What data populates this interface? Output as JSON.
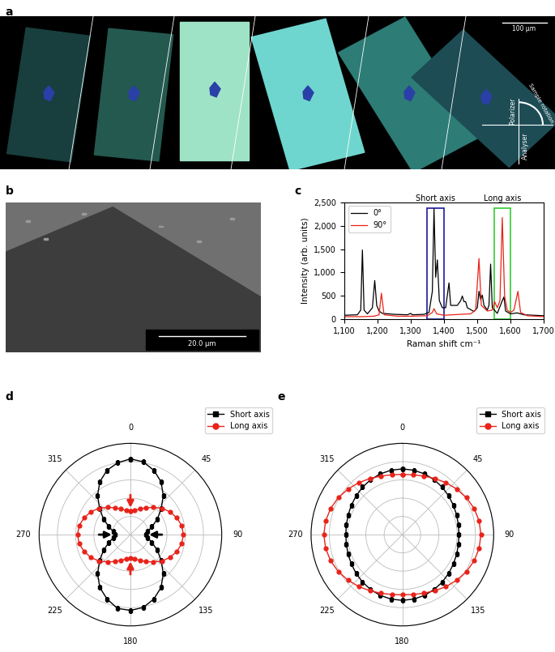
{
  "panels": [
    {
      "panel_label": "a",
      "type": "image",
      "scale_bar": "100 μm",
      "labels": [
        "Polarizer",
        "Sample rotation",
        "Analyser"
      ]
    },
    {
      "panel_label": "b",
      "type": "image",
      "scale_bar": "20.0 μm"
    }
  ],
  "chart_data": [
    {
      "panel_label": "c",
      "type": "line",
      "x_label": "Raman shift cm⁻¹",
      "y_label": "Intensity (arb. units)",
      "xlim": [
        1100,
        1700
      ],
      "xticks": [
        {
          "value": 1100,
          "label": "1,100"
        },
        {
          "value": 1200,
          "label": "1,200"
        },
        {
          "value": 1300,
          "label": "1,300"
        },
        {
          "value": 1400,
          "label": "1,400"
        },
        {
          "value": 1500,
          "label": "1,500"
        },
        {
          "value": 1600,
          "label": "1,600"
        },
        {
          "value": 1700,
          "label": "1,700"
        }
      ],
      "ylim": [
        0,
        2500
      ],
      "yticks": [
        0,
        500,
        {
          "value": 1000,
          "label": "1,000"
        },
        {
          "value": 1500,
          "label": "1,500"
        },
        {
          "value": 2000,
          "label": "2,000"
        },
        {
          "value": 2500,
          "label": "2,500"
        }
      ],
      "legend": "upper left",
      "series": [
        {
          "name": "0°",
          "color": "#000000",
          "x": [
            1100,
            1140,
            1150,
            1155,
            1160,
            1170,
            1185,
            1192,
            1198,
            1205,
            1215,
            1250,
            1290,
            1300,
            1305,
            1340,
            1355,
            1365,
            1370,
            1375,
            1380,
            1386,
            1395,
            1405,
            1415,
            1420,
            1440,
            1450,
            1455,
            1460,
            1465,
            1470,
            1490,
            1500,
            1505,
            1510,
            1515,
            1520,
            1530,
            1535,
            1540,
            1545,
            1560,
            1575,
            1580,
            1585,
            1600,
            1620,
            1640,
            1700
          ],
          "values": [
            90,
            100,
            200,
            1480,
            200,
            120,
            250,
            830,
            300,
            180,
            130,
            110,
            100,
            130,
            100,
            110,
            150,
            600,
            2360,
            900,
            1270,
            400,
            250,
            250,
            780,
            300,
            300,
            400,
            500,
            380,
            380,
            250,
            170,
            250,
            600,
            420,
            520,
            300,
            200,
            300,
            1180,
            250,
            130,
            400,
            480,
            180,
            120,
            140,
            100,
            80
          ]
        },
        {
          "name": "90°",
          "color": "#e8231a",
          "x": [
            1100,
            1150,
            1190,
            1205,
            1212,
            1220,
            1260,
            1300,
            1350,
            1365,
            1370,
            1378,
            1400,
            1450,
            1480,
            1495,
            1505,
            1512,
            1530,
            1545,
            1552,
            1560,
            1568,
            1575,
            1582,
            1590,
            1600,
            1610,
            1622,
            1630,
            1650,
            1700
          ],
          "values": [
            60,
            60,
            70,
            100,
            560,
            100,
            70,
            70,
            80,
            150,
            230,
            120,
            90,
            110,
            120,
            200,
            1300,
            300,
            180,
            200,
            380,
            250,
            400,
            2170,
            500,
            200,
            150,
            200,
            600,
            150,
            80,
            60
          ]
        }
      ],
      "regions": [
        {
          "label": "Short axis",
          "x": [
            1350,
            1400
          ],
          "y": [
            0,
            2380
          ],
          "color": "#1a1a9e"
        },
        {
          "label": "Long axis",
          "x": [
            1550,
            1600
          ],
          "y": [
            0,
            2380
          ],
          "color": "#33cc33"
        }
      ]
    },
    {
      "panel_label": "d",
      "type": "polar",
      "x": [
        0,
        10,
        20,
        30,
        40,
        50,
        60,
        70,
        80,
        90,
        100,
        110,
        120,
        130,
        140,
        150,
        160,
        170,
        180,
        190,
        200,
        210,
        220,
        230,
        240,
        250,
        260,
        270,
        280,
        290,
        300,
        310,
        320,
        330,
        340,
        350
      ],
      "xlim": [
        0,
        360
      ],
      "xticks": [
        0,
        45,
        90,
        135,
        180,
        225,
        270,
        315
      ],
      "ylim": [
        0,
        1
      ],
      "yticks": [
        0.2,
        0.4,
        0.6,
        0.8,
        1
      ],
      "tick_labels": "x",
      "grid": true,
      "legend": "upper right",
      "series": [
        {
          "name": "Short axis",
          "color": "#000000",
          "marker": "square",
          "values": [
            0.83,
            0.81,
            0.75,
            0.67,
            0.56,
            0.44,
            0.34,
            0.25,
            0.19,
            0.17,
            0.19,
            0.25,
            0.34,
            0.44,
            0.56,
            0.67,
            0.75,
            0.81,
            0.83,
            0.82,
            0.75,
            0.67,
            0.56,
            0.44,
            0.34,
            0.25,
            0.19,
            0.17,
            0.19,
            0.25,
            0.34,
            0.44,
            0.56,
            0.67,
            0.75,
            0.8
          ]
        },
        {
          "name": "Long axis",
          "color": "#e8231a",
          "marker": "circle",
          "values": [
            0.26,
            0.27,
            0.3,
            0.34,
            0.39,
            0.45,
            0.5,
            0.54,
            0.57,
            0.58,
            0.57,
            0.54,
            0.5,
            0.45,
            0.39,
            0.34,
            0.3,
            0.27,
            0.26,
            0.27,
            0.3,
            0.34,
            0.39,
            0.45,
            0.5,
            0.54,
            0.57,
            0.58,
            0.57,
            0.54,
            0.5,
            0.45,
            0.39,
            0.34,
            0.3,
            0.27
          ]
        }
      ]
    },
    {
      "panel_label": "e",
      "type": "polar",
      "x": [
        0,
        10,
        20,
        30,
        40,
        50,
        60,
        70,
        80,
        90,
        100,
        110,
        120,
        130,
        140,
        150,
        160,
        170,
        180,
        190,
        200,
        210,
        220,
        230,
        240,
        250,
        260,
        270,
        280,
        290,
        300,
        310,
        320,
        330,
        340,
        350
      ],
      "xlim": [
        0,
        360
      ],
      "xticks": [
        0,
        45,
        90,
        135,
        180,
        225,
        270,
        315
      ],
      "ylim": [
        0,
        1
      ],
      "yticks": [
        0.2,
        0.4,
        0.6,
        0.8,
        1
      ],
      "tick_labels": "x",
      "grid": true,
      "legend": "upper right",
      "series": [
        {
          "name": "Short axis",
          "color": "#000000",
          "marker": "square",
          "values": [
            0.72,
            0.717,
            0.708,
            0.695,
            0.679,
            0.661,
            0.645,
            0.632,
            0.623,
            0.62,
            0.623,
            0.632,
            0.645,
            0.661,
            0.679,
            0.695,
            0.708,
            0.717,
            0.72,
            0.717,
            0.708,
            0.695,
            0.679,
            0.661,
            0.645,
            0.632,
            0.623,
            0.62,
            0.623,
            0.632,
            0.645,
            0.661,
            0.679,
            0.695,
            0.708,
            0.717
          ]
        },
        {
          "name": "Long axis",
          "color": "#e8231a",
          "marker": "circle",
          "values": [
            0.66,
            0.666,
            0.683,
            0.71,
            0.743,
            0.777,
            0.81,
            0.837,
            0.854,
            0.86,
            0.854,
            0.837,
            0.81,
            0.777,
            0.743,
            0.71,
            0.683,
            0.666,
            0.66,
            0.666,
            0.683,
            0.71,
            0.743,
            0.777,
            0.81,
            0.837,
            0.854,
            0.86,
            0.854,
            0.837,
            0.81,
            0.777,
            0.743,
            0.71,
            0.683,
            0.666
          ]
        }
      ]
    }
  ]
}
